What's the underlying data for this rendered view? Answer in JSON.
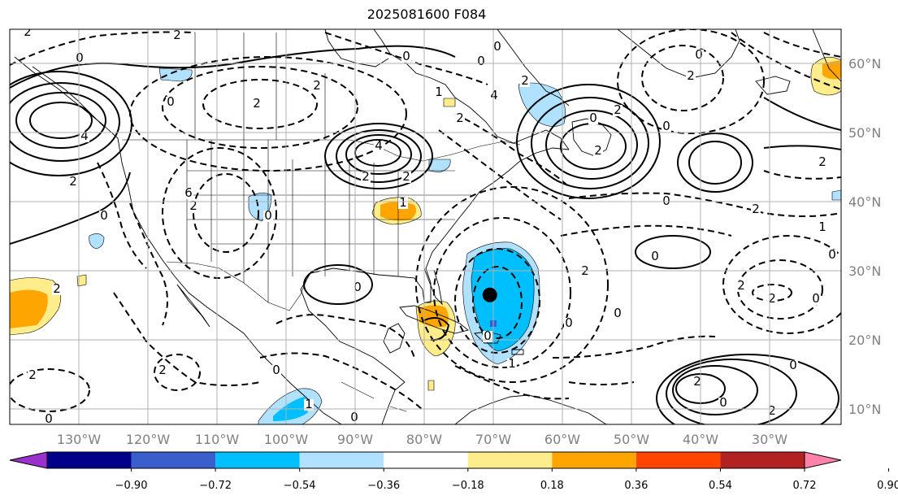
{
  "title": "2025081600 F084",
  "lon_labels": [
    "130°W",
    "120°W",
    "110°W",
    "100°W",
    "90°W",
    "80°W",
    "70°W",
    "60°W",
    "50°W",
    "40°W",
    "30°W"
  ],
  "lat_labels": [
    "60°N",
    "50°N",
    "40°N",
    "30°N",
    "20°N",
    "10°N"
  ],
  "colorbar": {
    "tick_labels": [
      "−0.90",
      "−0.72",
      "−0.54",
      "−0.36",
      "−0.18",
      "0.18",
      "0.36",
      "0.54",
      "0.72",
      "0.90"
    ],
    "colors": [
      "#9932cc",
      "#00008b",
      "#3a5fcd",
      "#00bfff",
      "#b0e2ff",
      "#ffffff",
      "#ffec8b",
      "#ffa500",
      "#ff4500",
      "#b22222",
      "#ff82ab"
    ]
  },
  "contour_labels": [
    "2",
    "0",
    "4",
    "2",
    "2",
    "0",
    "2",
    "2",
    "0",
    "4",
    "2",
    "2",
    "1",
    "2",
    "0",
    "0",
    "0",
    "1",
    "0",
    "6",
    "2",
    "0",
    "2",
    "2",
    "0",
    "1",
    "0",
    "2",
    "0",
    "2",
    "4",
    "2",
    "0",
    "0",
    "2",
    "0",
    "2",
    "0",
    "2",
    "2",
    "1",
    "0",
    "0",
    "2",
    "2",
    "2",
    "0",
    "0",
    "2",
    "0",
    "2",
    "0",
    "1",
    "0",
    "0"
  ],
  "point_marker": {
    "name": "storm-center",
    "lon": -70.5,
    "lat": 26.5
  }
}
